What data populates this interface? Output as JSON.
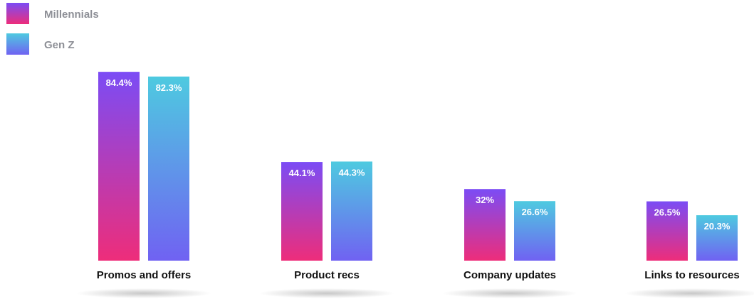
{
  "chart_data": {
    "type": "bar",
    "title": "",
    "xlabel": "",
    "ylabel": "",
    "ylim": [
      0,
      100
    ],
    "grid": false,
    "legend_position": "top-left",
    "categories": [
      "Promos and offers",
      "Product recs",
      "Company updates",
      "Links to resources"
    ],
    "series": [
      {
        "name": "Millennials",
        "values": [
          84.4,
          44.1,
          32,
          26.5
        ],
        "labels": [
          "84.4%",
          "44.1%",
          "32%",
          "26.5%"
        ],
        "color_top": "#7b4cf5",
        "color_bottom": "#ee2d7a"
      },
      {
        "name": "Gen Z",
        "values": [
          82.3,
          44.3,
          26.6,
          20.3
        ],
        "labels": [
          "82.3%",
          "44.3%",
          "26.6%",
          "20.3%"
        ],
        "color_top": "#4ecae0",
        "color_bottom": "#7062f2"
      }
    ]
  }
}
